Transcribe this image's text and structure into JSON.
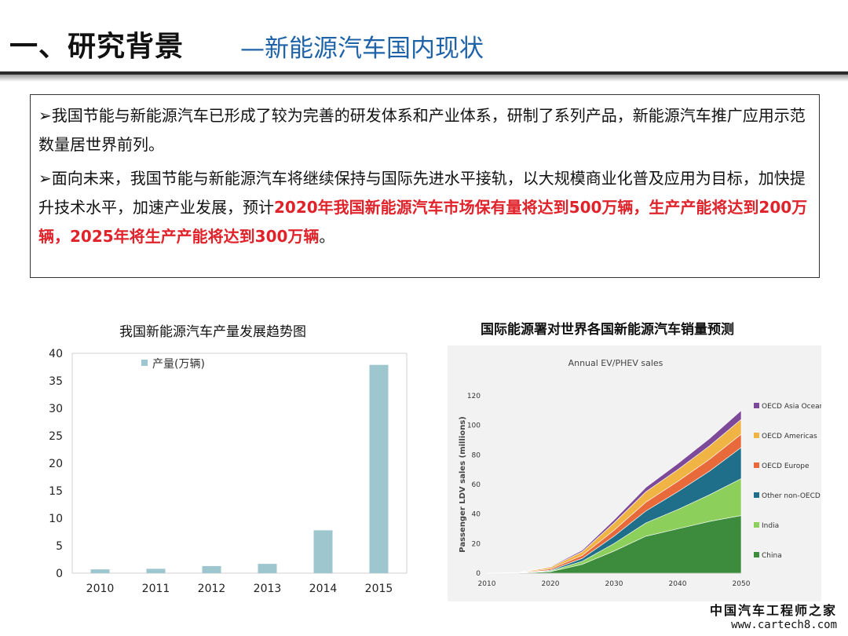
{
  "slide": {
    "title_main": "一、研究背景",
    "title_sub": "—新能源汽车国内现状"
  },
  "textbox": {
    "para1": "➢我国节能与新能源汽车已形成了较为完善的研发体系和产业体系，研制了系列产品，新能源汽车推广应用示范数量居世界前列。",
    "para2_normal": "➢面向未来，我国节能与新能源汽车将继续保持与国际先进水平接轨，以大规模商业化普及应用为目标，加快提升技术水平，加速产业发展，预计",
    "para2_highlight": "2020年我国新能源汽车市场保有量将达到500万辆，生产产能将达到200万辆，2025年将生产产能将达到300万辆",
    "para2_end": "。"
  },
  "chart_data": [
    {
      "type": "bar",
      "title": "我国新能源汽车产量发展趋势图",
      "categories": [
        "2010",
        "2011",
        "2012",
        "2013",
        "2014",
        "2015"
      ],
      "series": [
        {
          "name": "产量(万辆)",
          "values": [
            0.7,
            0.8,
            1.3,
            1.7,
            7.8,
            37.9
          ]
        }
      ],
      "ylim": [
        0,
        40
      ],
      "yticks": [
        "0",
        "5",
        "10",
        "15",
        "20",
        "25",
        "30",
        "35",
        "40"
      ],
      "grid": false,
      "legend": "top-left",
      "colors": {
        "bar": "#9ec6cf"
      }
    },
    {
      "type": "area",
      "title": "国际能源署对世界各国新能源汽车销量预测",
      "inner_title": "Annual EV/PHEV sales",
      "ylabel": "Passenger LDV sales (millions)",
      "x": [
        2010,
        2015,
        2020,
        2025,
        2030,
        2035,
        2040,
        2045,
        2050
      ],
      "xticks": [
        "2010",
        "2020",
        "2030",
        "2040",
        "2050"
      ],
      "yticks": [
        "0",
        "20",
        "40",
        "60",
        "80",
        "100",
        "120"
      ],
      "ylim": [
        0,
        120
      ],
      "legend": "right",
      "series": [
        {
          "name": "China",
          "color": "#3d8c3d",
          "values": [
            0,
            0.1,
            1,
            6,
            15,
            25,
            30,
            35,
            39
          ]
        },
        {
          "name": "India",
          "color": "#8ccf5a",
          "values": [
            0,
            0,
            0.5,
            2,
            5,
            9,
            13,
            18,
            25
          ]
        },
        {
          "name": "Other non-OECD",
          "color": "#1f6e8a",
          "values": [
            0,
            0,
            0.5,
            2,
            5,
            8,
            12,
            16,
            21
          ]
        },
        {
          "name": "OECD Europe",
          "color": "#e8693a",
          "values": [
            0,
            0.2,
            1,
            2,
            4,
            6,
            7,
            8,
            9
          ]
        },
        {
          "name": "OECD Americas",
          "color": "#f0b444",
          "values": [
            0,
            0.2,
            1,
            2.5,
            5,
            7,
            8,
            9,
            10
          ]
        },
        {
          "name": "OECD Asia Oceania",
          "color": "#7d4a9a",
          "values": [
            0,
            0.1,
            0.4,
            1,
            2,
            3,
            4,
            5,
            6
          ]
        }
      ]
    }
  ],
  "watermark": {
    "cn": "中国汽车工程师之家",
    "url": "www.cartech8.com"
  }
}
